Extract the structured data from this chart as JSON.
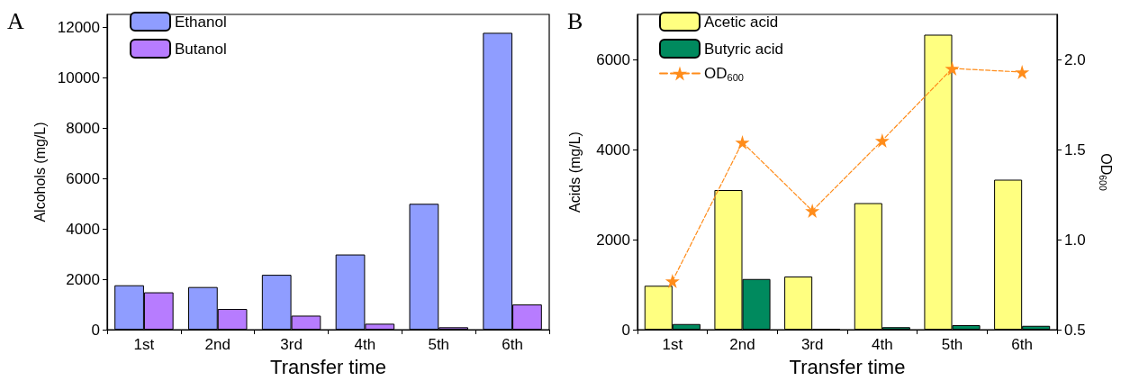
{
  "chart_data": [
    {
      "type": "bar",
      "annotations": [
        "A"
      ],
      "xlabel": "Transfer time",
      "ylabel": "Alcohols (mg/L)",
      "categories": [
        "1st",
        "2nd",
        "3rd",
        "4th",
        "5th",
        "6th"
      ],
      "series": [
        {
          "name": "Ethanol",
          "color": "#8f9dff",
          "values": [
            1760,
            1690,
            2175,
            2980,
            4990,
            11770
          ]
        },
        {
          "name": "Butanol",
          "color": "#b77cff",
          "values": [
            1480,
            820,
            555,
            235,
            95,
            1000
          ]
        }
      ],
      "ylim": [
        0,
        12500
      ],
      "yticks": [
        0,
        2000,
        4000,
        6000,
        8000,
        10000,
        12000
      ],
      "grid": false,
      "legend": "top left"
    },
    {
      "type": "bar",
      "annotations": [
        "B"
      ],
      "xlabel": "Transfer time",
      "ylabel": "Acids (mg/L)",
      "y2label": "OD$_{600}$",
      "categories": [
        "1st",
        "2nd",
        "3rd",
        "4th",
        "5th",
        "6th"
      ],
      "series": [
        {
          "name": "Acetic acid",
          "color": "#ffff80",
          "values": [
            975,
            3100,
            1180,
            2810,
            6550,
            3330
          ]
        },
        {
          "name": "Butyric acid",
          "color": "#008a5e",
          "values": [
            125,
            1125,
            20,
            55,
            100,
            85
          ]
        },
        {
          "name": "OD$_{600}$",
          "type": "line",
          "axis": "y2",
          "color": "#ff8c1a",
          "marker": "star",
          "line_style": "dashed",
          "values": [
            0.77,
            1.54,
            1.16,
            1.55,
            1.95,
            1.93
          ]
        }
      ],
      "ylim": [
        0,
        7000
      ],
      "yticks": [
        0,
        2000,
        4000,
        6000
      ],
      "y2lim": [
        0.5,
        2.25
      ],
      "y2ticks": [
        0.5,
        {
          "value": 1,
          "label": "1.0"
        },
        1.5,
        {
          "value": 2,
          "label": "2.0"
        }
      ],
      "grid": false,
      "legend": "top left"
    }
  ]
}
